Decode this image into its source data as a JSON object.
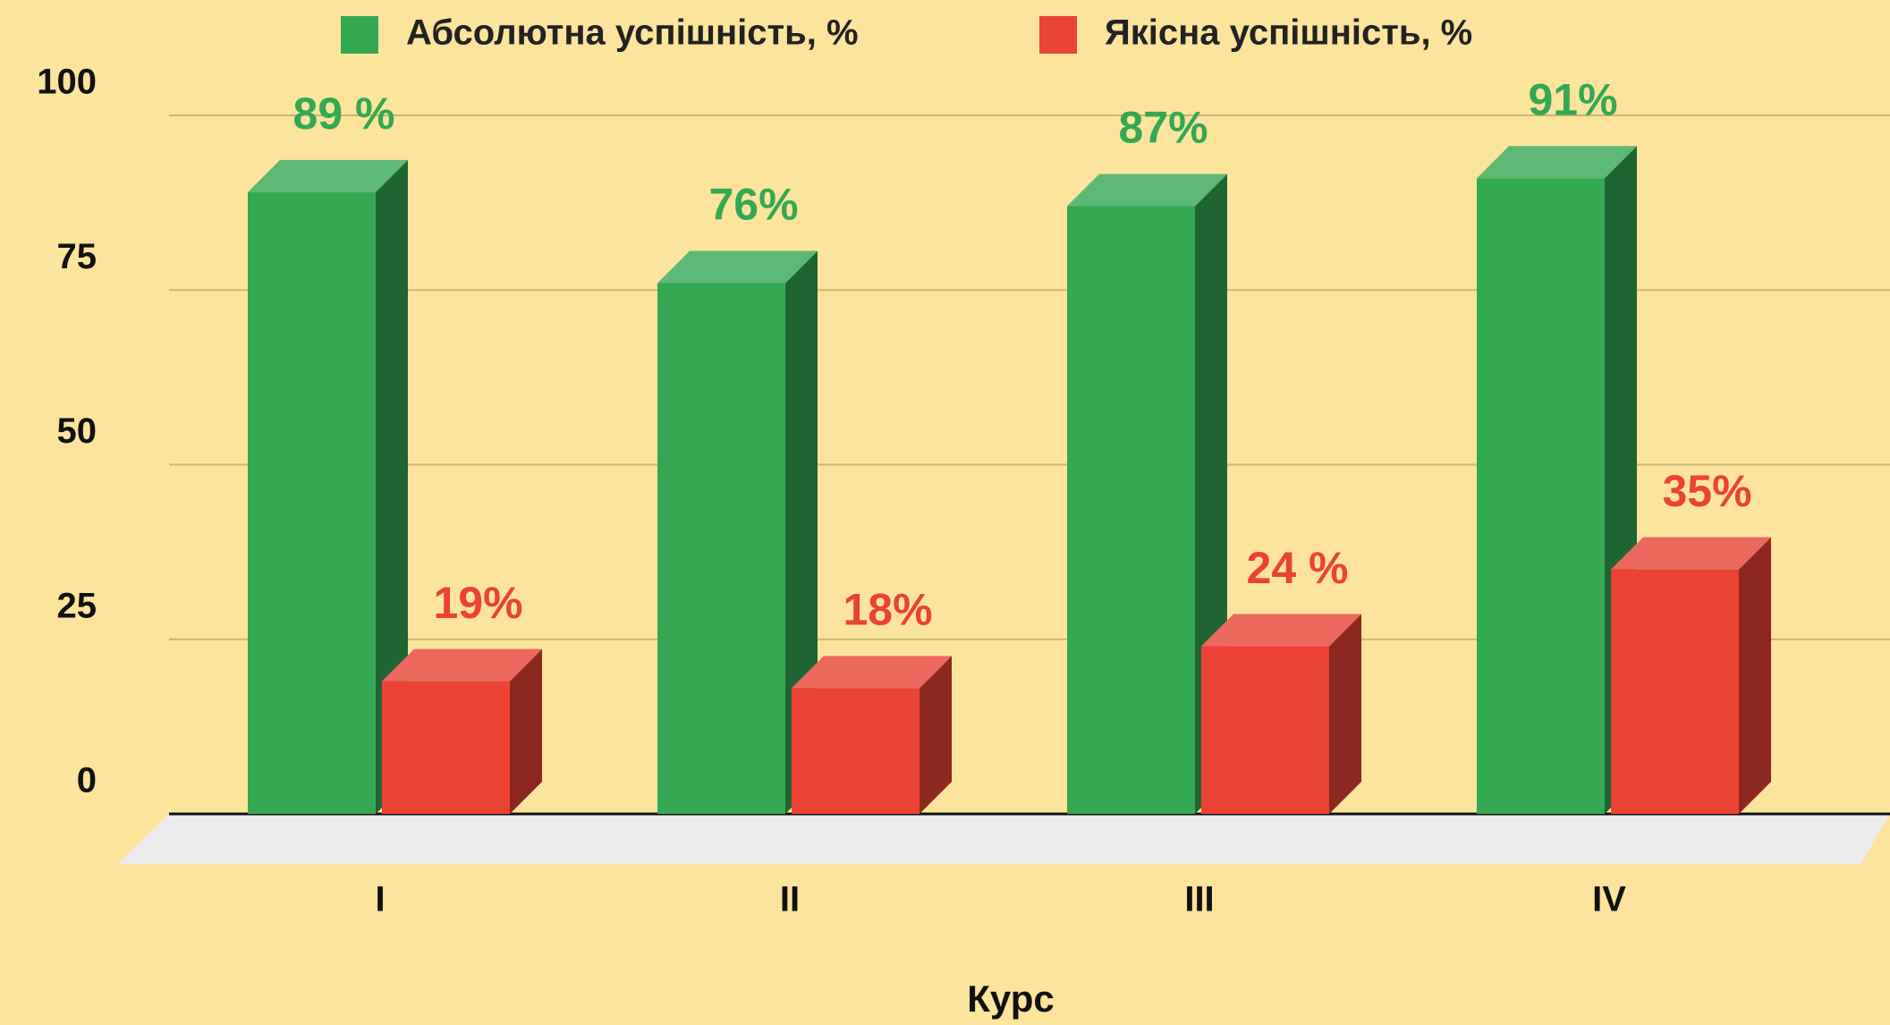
{
  "chart_data": {
    "type": "bar3d",
    "x_label": "Курс",
    "categories": [
      "I",
      "II",
      "III",
      "IV"
    ],
    "series": [
      {
        "name": "Абсолютна успішність, %",
        "color": "#34a853",
        "values": [
          89,
          76,
          87,
          91
        ],
        "value_labels": [
          "89 %",
          "76%",
          "87%",
          "91%"
        ]
      },
      {
        "name": "Якісна успішність, %",
        "color": "#ea4335",
        "values": [
          19,
          18,
          24,
          35
        ],
        "value_labels": [
          "19%",
          "18%",
          "24 %",
          "35%"
        ]
      }
    ],
    "ylim": [
      0,
      100
    ],
    "yticks": [
      0,
      25,
      50,
      75,
      100
    ],
    "grid": true,
    "legend": "top"
  }
}
